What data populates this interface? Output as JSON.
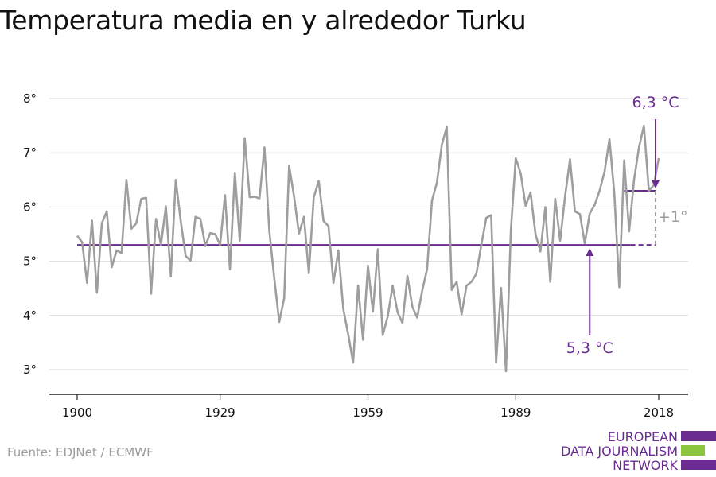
{
  "title": "Temperatura media en y alrededor Turku",
  "source": "Fuente: EDJNet / ECMWF",
  "logo": {
    "lines": [
      "EUROPEAN",
      "DATA JOURNALISM",
      "NETWORK"
    ],
    "colors": [
      "#6a2c91",
      "#8cc63f",
      "#6a2c91"
    ]
  },
  "colors": {
    "series": "#9e9e9e",
    "accent": "#6a2c91",
    "grid": "#d9d9d9",
    "diff": "#9e9e9e"
  },
  "chart_data": {
    "type": "line",
    "title": "Temperatura media en y alrededor Turku",
    "xlabel": "",
    "ylabel": "",
    "xlim": [
      1900,
      2018
    ],
    "ylim": [
      2.6,
      8.4
    ],
    "x_ticks": [
      1900,
      1929,
      1959,
      1989,
      2018
    ],
    "x_tick_labels": [
      "1900",
      "1929",
      "1959",
      "1989",
      "2018"
    ],
    "y_ticks": [
      3,
      4,
      5,
      6,
      7,
      8
    ],
    "y_tick_labels": [
      "3°",
      "4°",
      "5°",
      "6°",
      "7°",
      "8°"
    ],
    "grid": true,
    "series": [
      {
        "x": [
          1900,
          1901,
          1902,
          1903,
          1904,
          1905,
          1906,
          1907,
          1908,
          1909,
          1910,
          1911,
          1912,
          1913,
          1914,
          1915,
          1916,
          1917,
          1918,
          1919,
          1920,
          1921,
          1922,
          1923,
          1924,
          1925,
          1926,
          1927,
          1928,
          1929,
          1930,
          1931,
          1932,
          1933,
          1934,
          1935,
          1936,
          1937,
          1938,
          1939,
          1940,
          1941,
          1942,
          1943,
          1944,
          1945,
          1946,
          1947,
          1948,
          1949,
          1950,
          1951,
          1952,
          1953,
          1954,
          1955,
          1956,
          1957,
          1958,
          1959,
          1960,
          1961,
          1962,
          1963,
          1964,
          1965,
          1966,
          1967,
          1968,
          1969,
          1970,
          1971,
          1972,
          1973,
          1974,
          1975,
          1976,
          1977,
          1978,
          1979,
          1980,
          1981,
          1982,
          1983,
          1984,
          1985,
          1986,
          1987,
          1988,
          1989,
          1990,
          1991,
          1992,
          1993,
          1994,
          1995,
          1996,
          1997,
          1998,
          1999,
          2000,
          2001,
          2002,
          2003,
          2004,
          2005,
          2006,
          2007,
          2008,
          2009,
          2010,
          2011,
          2012,
          2013,
          2014,
          2015,
          2016,
          2017,
          2018
        ],
        "values": [
          5.47,
          5.35,
          4.6,
          5.75,
          4.42,
          5.7,
          5.92,
          4.89,
          5.2,
          5.15,
          6.5,
          5.6,
          5.7,
          6.15,
          6.17,
          4.4,
          5.78,
          5.3,
          6.01,
          4.72,
          6.5,
          5.75,
          5.1,
          5.01,
          5.82,
          5.78,
          5.28,
          5.52,
          5.5,
          5.3,
          6.22,
          4.85,
          6.63,
          5.38,
          7.27,
          6.18,
          6.19,
          6.16,
          7.1,
          5.55,
          4.68,
          3.88,
          4.32,
          6.76,
          6.2,
          5.51,
          5.82,
          4.78,
          6.18,
          6.48,
          5.74,
          5.65,
          4.6,
          5.2,
          4.12,
          3.65,
          3.13,
          4.55,
          3.55,
          4.92,
          4.07,
          5.22,
          3.64,
          3.98,
          4.55,
          4.06,
          3.86,
          4.73,
          4.16,
          3.96,
          4.45,
          4.85,
          6.12,
          6.45,
          7.15,
          7.48,
          4.47,
          4.62,
          4.02,
          4.55,
          4.62,
          4.77,
          5.3,
          5.8,
          5.85,
          3.13,
          4.51,
          2.97,
          5.58,
          6.9,
          6.62,
          6.02,
          6.27,
          5.5,
          5.18,
          6.0,
          4.62,
          6.15,
          5.38,
          6.2,
          6.88,
          5.92,
          5.87,
          5.33,
          5.88,
          6.04,
          6.3,
          6.65,
          7.25,
          6.25,
          4.52,
          6.86,
          5.55,
          6.5,
          7.1,
          7.5,
          6.3,
          6.4,
          6.9
        ]
      }
    ],
    "reference_lines": [
      {
        "value": 5.3,
        "from": 1900,
        "to": 2018,
        "label": "5,3 °C"
      },
      {
        "value": 6.3,
        "from": 2011,
        "to": 2018,
        "label": "6,3 °C"
      }
    ],
    "difference_label": "+1°"
  }
}
